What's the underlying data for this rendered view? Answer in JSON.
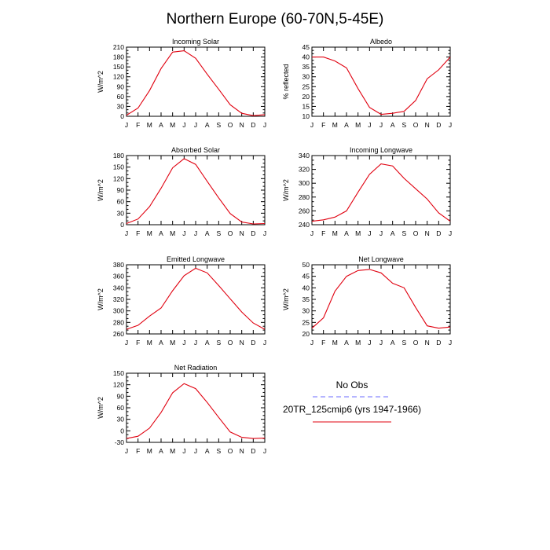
{
  "title": "Northern Europe (60-70N,5-45E)",
  "months": [
    "J",
    "F",
    "M",
    "A",
    "M",
    "J",
    "J",
    "A",
    "S",
    "O",
    "N",
    "D",
    "J"
  ],
  "legend": {
    "obs_label": "No Obs",
    "obs_color": "#6b6bff",
    "model_label": "20TR_125cmip6 (yrs 1947-1966)",
    "model_color": "#e0000f"
  },
  "chart_data": [
    {
      "type": "line",
      "title": "Incoming Solar",
      "ylabel": "W/m^2",
      "ylim": [
        0,
        210
      ],
      "yticks": [
        "0",
        "30",
        "60",
        "90",
        "120",
        "150",
        "180",
        "210"
      ],
      "categories": [
        "J",
        "F",
        "M",
        "A",
        "M",
        "J",
        "J",
        "A",
        "S",
        "O",
        "N",
        "D",
        "J"
      ],
      "series": [
        {
          "name": "20TR_125cmip6 (yrs 1947-1966)",
          "values": [
            3,
            25,
            78,
            145,
            195,
            199,
            176,
            128,
            82,
            35,
            9,
            2,
            5
          ]
        }
      ]
    },
    {
      "type": "line",
      "title": "Albedo",
      "ylabel": "% reflected",
      "ylim": [
        10,
        45
      ],
      "yticks": [
        "10",
        "15",
        "20",
        "25",
        "30",
        "35",
        "40",
        "45"
      ],
      "categories": [
        "J",
        "F",
        "M",
        "A",
        "M",
        "J",
        "J",
        "A",
        "S",
        "O",
        "N",
        "D",
        "J"
      ],
      "series": [
        {
          "name": "20TR_125cmip6 (yrs 1947-1966)",
          "values": [
            40,
            40,
            38,
            34.5,
            24,
            14.5,
            11,
            11.5,
            12.5,
            18,
            29,
            33.5,
            40
          ]
        }
      ]
    },
    {
      "type": "line",
      "title": "Absorbed Solar",
      "ylabel": "W/m^2",
      "ylim": [
        0,
        180
      ],
      "yticks": [
        "0",
        "30",
        "60",
        "90",
        "120",
        "150",
        "180"
      ],
      "categories": [
        "J",
        "F",
        "M",
        "A",
        "M",
        "J",
        "J",
        "A",
        "S",
        "O",
        "N",
        "D",
        "J"
      ],
      "series": [
        {
          "name": "20TR_125cmip6 (yrs 1947-1966)",
          "values": [
            3,
            15,
            47,
            95,
            148,
            172,
            157,
            113,
            70,
            29,
            7,
            2,
            3
          ]
        }
      ]
    },
    {
      "type": "line",
      "title": "Incoming Longwave",
      "ylabel": "W/m^2",
      "ylim": [
        240,
        340
      ],
      "yticks": [
        "240",
        "260",
        "280",
        "300",
        "320",
        "340"
      ],
      "categories": [
        "J",
        "F",
        "M",
        "A",
        "M",
        "J",
        "J",
        "A",
        "S",
        "O",
        "N",
        "D",
        "J"
      ],
      "series": [
        {
          "name": "20TR_125cmip6 (yrs 1947-1966)",
          "values": [
            245,
            247,
            251,
            260,
            287,
            313,
            328,
            325,
            307,
            292,
            277,
            257,
            245
          ]
        }
      ]
    },
    {
      "type": "line",
      "title": "Emitted Longwave",
      "ylabel": "W/m^2",
      "ylim": [
        260,
        380
      ],
      "yticks": [
        "260",
        "280",
        "300",
        "320",
        "340",
        "360",
        "380"
      ],
      "categories": [
        "J",
        "F",
        "M",
        "A",
        "M",
        "J",
        "J",
        "A",
        "S",
        "O",
        "N",
        "D",
        "J"
      ],
      "series": [
        {
          "name": "20TR_125cmip6 (yrs 1947-1966)",
          "values": [
            268,
            275,
            291,
            305,
            335,
            361,
            374,
            366,
            344,
            321,
            298,
            279,
            268
          ]
        }
      ]
    },
    {
      "type": "line",
      "title": "Net Longwave",
      "ylabel": "W/m^2",
      "ylim": [
        20,
        50
      ],
      "yticks": [
        "20",
        "25",
        "30",
        "35",
        "40",
        "45",
        "50"
      ],
      "categories": [
        "J",
        "F",
        "M",
        "A",
        "M",
        "J",
        "J",
        "A",
        "S",
        "O",
        "N",
        "D",
        "J"
      ],
      "series": [
        {
          "name": "20TR_125cmip6 (yrs 1947-1966)",
          "values": [
            22.5,
            27,
            38.5,
            45,
            47.5,
            48,
            46.5,
            42,
            40,
            31.5,
            23.5,
            22.5,
            23
          ]
        }
      ]
    },
    {
      "type": "line",
      "title": "Net Radiation",
      "ylabel": "W/m^2",
      "ylim": [
        -30,
        150
      ],
      "yticks": [
        "-30",
        "0",
        "30",
        "60",
        "90",
        "120",
        "150"
      ],
      "categories": [
        "J",
        "F",
        "M",
        "A",
        "M",
        "J",
        "J",
        "A",
        "S",
        "O",
        "N",
        "D",
        "J"
      ],
      "series": [
        {
          "name": "20TR_125cmip6 (yrs 1947-1966)",
          "values": [
            -20,
            -14,
            7,
            48,
            99,
            123,
            110,
            74,
            35,
            -3,
            -17,
            -20,
            -19
          ]
        }
      ]
    }
  ]
}
